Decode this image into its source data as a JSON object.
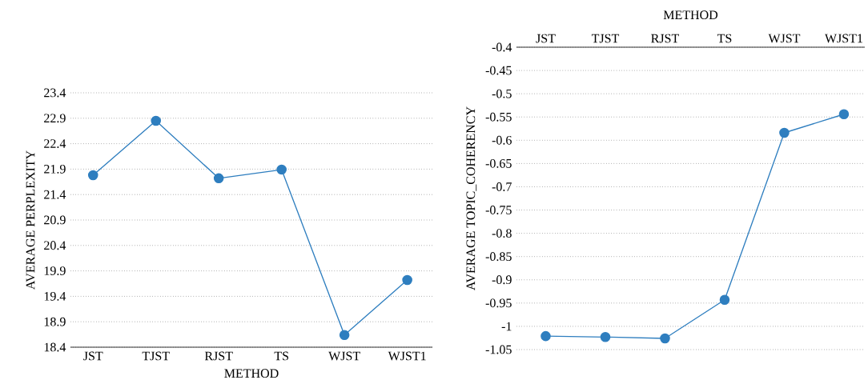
{
  "chart_data": [
    {
      "type": "line",
      "xlabel": "METHOD",
      "ylabel": "AVERAGE PERPLEXITY",
      "categories": [
        "JST",
        "TJST",
        "RJST",
        "TS",
        "WJST",
        "WJST1"
      ],
      "series": [
        {
          "color": "#2e7ebf",
          "values": [
            21.78,
            22.85,
            21.72,
            21.89,
            18.64,
            19.72
          ]
        }
      ],
      "ylim": [
        18.4,
        23.4
      ],
      "yticks": [
        18.4,
        18.9,
        19.4,
        19.9,
        20.4,
        20.9,
        21.4,
        21.9,
        22.4,
        22.9,
        23.4
      ],
      "grid": "y",
      "marker": "circle",
      "line_style": "solid"
    },
    {
      "type": "line",
      "xlabel": "METHOD",
      "ylabel": "AVERAGE TOPIC_COHERENCY",
      "categories": [
        "JST",
        "TJST",
        "RJST",
        "TS",
        "WJST",
        "WJST1"
      ],
      "series": [
        {
          "color": "#2e7ebf",
          "values": [
            -1.021,
            -1.023,
            -1.026,
            -0.943,
            -0.584,
            -0.544
          ]
        }
      ],
      "ylim": [
        -1.05,
        -0.4
      ],
      "yticks": [
        -1.05,
        -1,
        -0.95,
        -0.9,
        -0.85,
        -0.8,
        -0.75,
        -0.7,
        -0.65,
        -0.6,
        -0.55,
        -0.5,
        -0.45,
        -0.4
      ],
      "grid": "y",
      "marker": "circle",
      "line_style": "solid"
    }
  ]
}
